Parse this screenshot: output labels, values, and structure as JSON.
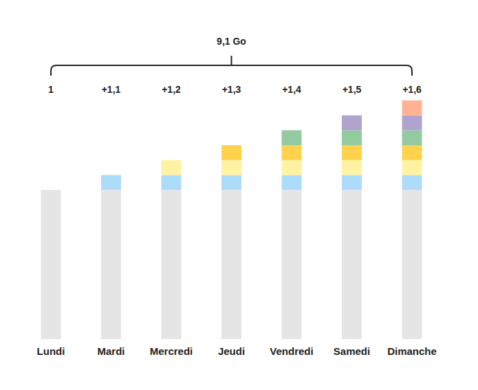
{
  "chart_data": {
    "type": "bar",
    "stacked": true,
    "tick_labels": "x",
    "categories": [
      "Lundi",
      "Mardi",
      "Mercredi",
      "Jeudi",
      "Vendredi",
      "Samedi",
      "Dimanche"
    ],
    "series": [
      {
        "color": "#e5e5e5",
        "values": [
          1,
          1,
          1,
          1,
          1,
          1,
          1
        ]
      },
      {
        "color": "#addcfb",
        "values": [
          null,
          0.1,
          0.1,
          0.1,
          0.1,
          0.1,
          0.1
        ]
      },
      {
        "color": "#fff3a3",
        "values": [
          null,
          null,
          0.1,
          0.1,
          0.1,
          0.1,
          0.1
        ]
      },
      {
        "color": "#ffd24d",
        "values": [
          null,
          null,
          null,
          0.1,
          0.1,
          0.1,
          0.1
        ]
      },
      {
        "color": "#93caa0",
        "values": [
          null,
          null,
          null,
          null,
          0.1,
          0.1,
          0.1
        ]
      },
      {
        "color": "#b0a4cf",
        "values": [
          null,
          null,
          null,
          null,
          null,
          0.1,
          0.1
        ]
      },
      {
        "color": "#ffb392",
        "values": [
          null,
          null,
          null,
          null,
          null,
          null,
          0.1
        ]
      }
    ],
    "totals": [
      1,
      1.1,
      1.2,
      1.3,
      1.4,
      1.5,
      1.6
    ],
    "total_labels": [
      "1",
      "+1,1",
      "+1,2",
      "+1,3",
      "+1,4",
      "+1,5",
      "+1,6"
    ],
    "sum": 9.1,
    "sum_label": "9,1 Go",
    "ylim": [
      0,
      1.6
    ]
  }
}
